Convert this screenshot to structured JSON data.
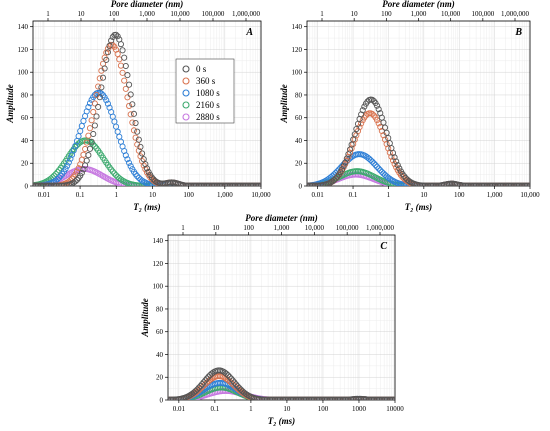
{
  "legend": {
    "entries": [
      "0 s",
      "360 s",
      "1080 s",
      "2160 s",
      "2880 s"
    ],
    "colors": [
      "#555555",
      "#d9734f",
      "#2e7fd6",
      "#3caa6e",
      "#c678e0"
    ]
  },
  "chart_data": [
    {
      "type": "scatter",
      "panel_label": "A",
      "xlabel": "T₂ (ms)",
      "top_xlabel": "Pore diameter (nm)",
      "ylabel": "Amplitude",
      "x_scale": "log",
      "xlim": [
        0.005,
        10000
      ],
      "ylim": [
        0,
        145
      ],
      "x_tick_labels": [
        "0.01",
        "0.1",
        "1",
        "10",
        "100",
        "1,000",
        "10,000"
      ],
      "top_tick_labels": [
        "1",
        "10",
        "100",
        "1,000",
        "10,000",
        "100,000",
        "1,000,000"
      ],
      "y_tick_labels": [
        "0",
        "20",
        "40",
        "60",
        "80",
        "100",
        "120",
        "140"
      ],
      "series": [
        {
          "name": "0 s",
          "color": "#555555",
          "peak": 133,
          "peak_t2": 0.95,
          "width": 0.42
        },
        {
          "name": "360 s",
          "color": "#d9734f",
          "peak": 124,
          "peak_t2": 0.75,
          "width": 0.45
        },
        {
          "name": "1080 s",
          "color": "#2e7fd6",
          "peak": 82,
          "peak_t2": 0.33,
          "width": 0.5
        },
        {
          "name": "2160 s",
          "color": "#3caa6e",
          "peak": 40,
          "peak_t2": 0.14,
          "width": 0.5
        },
        {
          "name": "2880 s",
          "color": "#c678e0",
          "peak": 15,
          "peak_t2": 0.13,
          "width": 0.5
        }
      ],
      "minor_peak": {
        "t2": 35,
        "value": 3
      }
    },
    {
      "type": "scatter",
      "panel_label": "B",
      "xlabel": "T₂ (ms)",
      "top_xlabel": "Pore diameter (nm)",
      "ylabel": "Amplitude",
      "x_scale": "log",
      "xlim": [
        0.005,
        10000
      ],
      "ylim": [
        0,
        145
      ],
      "x_tick_labels": [
        "0.01",
        "0.1",
        "1",
        "10",
        "100",
        "1,000",
        "10,000"
      ],
      "top_tick_labels": [
        "1",
        "10",
        "100",
        "1,000",
        "10,000",
        "100,000",
        "1,000,000"
      ],
      "y_tick_labels": [
        "0",
        "20",
        "40",
        "60",
        "80",
        "100",
        "120",
        "140"
      ],
      "series": [
        {
          "name": "0 s",
          "color": "#555555",
          "peak": 76,
          "peak_t2": 0.32,
          "width": 0.45
        },
        {
          "name": "360 s",
          "color": "#d9734f",
          "peak": 64,
          "peak_t2": 0.3,
          "width": 0.45
        },
        {
          "name": "1080 s",
          "color": "#2e7fd6",
          "peak": 28,
          "peak_t2": 0.15,
          "width": 0.5
        },
        {
          "name": "2160 s",
          "color": "#3caa6e",
          "peak": 13,
          "peak_t2": 0.13,
          "width": 0.5
        },
        {
          "name": "2880 s",
          "color": "#c678e0",
          "peak": 10,
          "peak_t2": 0.12,
          "width": 0.5
        }
      ],
      "minor_peak": {
        "t2": 60,
        "value": 2
      }
    },
    {
      "type": "scatter",
      "panel_label": "C",
      "xlabel": "T₂ (ms)",
      "top_xlabel": "Pore diameter (nm)",
      "ylabel": "Amplitude",
      "x_scale": "log",
      "xlim": [
        0.005,
        10000
      ],
      "ylim": [
        0,
        145
      ],
      "x_tick_labels": [
        "0.01",
        "0.1",
        "1",
        "10",
        "100",
        "1000",
        "10000"
      ],
      "top_tick_labels": [
        "1",
        "10",
        "100",
        "1,000",
        "10,000",
        "100,000",
        "1,000,000"
      ],
      "y_tick_labels": [
        "0",
        "20",
        "40",
        "60",
        "80",
        "100",
        "120",
        "140"
      ],
      "series": [
        {
          "name": "0 s",
          "color": "#555555",
          "peak": 26,
          "peak_t2": 0.13,
          "width": 0.42
        },
        {
          "name": "360 s",
          "color": "#d9734f",
          "peak": 21,
          "peak_t2": 0.13,
          "width": 0.42
        },
        {
          "name": "1080 s",
          "color": "#2e7fd6",
          "peak": 15,
          "peak_t2": 0.14,
          "width": 0.45
        },
        {
          "name": "2160 s",
          "color": "#3caa6e",
          "peak": 11,
          "peak_t2": 0.15,
          "width": 0.45
        },
        {
          "name": "2880 s",
          "color": "#c678e0",
          "peak": 8,
          "peak_t2": 0.2,
          "width": 0.5
        }
      ],
      "minor_peak": {
        "t2": 1000,
        "value": 1
      }
    }
  ]
}
